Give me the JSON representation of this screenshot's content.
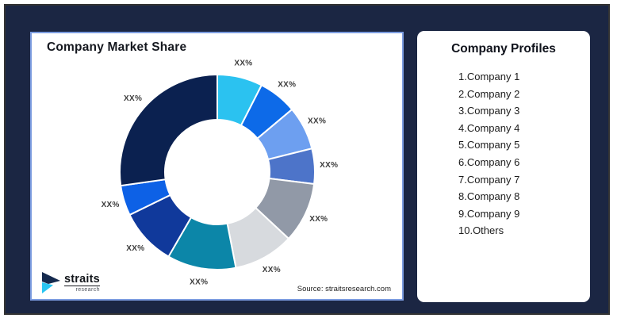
{
  "theme": {
    "background_navy": "#1B2643",
    "outer_border": "#333333",
    "chart_card_border": "#7C9CE0",
    "label_gray": "#3D3D3D",
    "logo_navy": "#152A4E",
    "logo_cyan": "#29C5F2"
  },
  "chart_card": {
    "title": "Company Market Share",
    "source": "Source: straitsresearch.com",
    "logo": {
      "brand": "straits",
      "sub": "research"
    }
  },
  "chart_data": {
    "type": "pie",
    "subtype": "donut",
    "title": "Company Market Share",
    "value_labels_placeholder": "XX%",
    "direction": "clockwise",
    "start_angle_deg": 0,
    "inner_radius_ratio": 0.54,
    "legend_position": "none",
    "segments": [
      {
        "label": "XX%",
        "degrees": 27,
        "approx_percent": 7.5,
        "color": "#2BC2F0"
      },
      {
        "label": "XX%",
        "degrees": 23,
        "approx_percent": 6.4,
        "color": "#0D6AE8"
      },
      {
        "label": "XX%",
        "degrees": 26,
        "approx_percent": 7.2,
        "color": "#6D9FF0"
      },
      {
        "label": "XX%",
        "degrees": 21,
        "approx_percent": 5.8,
        "color": "#4D74C9"
      },
      {
        "label": "XX%",
        "degrees": 36,
        "approx_percent": 10.0,
        "color": "#9199A7"
      },
      {
        "label": "XX%",
        "degrees": 36,
        "approx_percent": 10.0,
        "color": "#D7DADE"
      },
      {
        "label": "XX%",
        "degrees": 41,
        "approx_percent": 11.4,
        "color": "#0C86A8"
      },
      {
        "label": "XX%",
        "degrees": 34,
        "approx_percent": 9.4,
        "color": "#10399B"
      },
      {
        "label": "XX%",
        "degrees": 18,
        "approx_percent": 5.0,
        "color": "#0D61E6"
      },
      {
        "label": "XX%",
        "degrees": 98,
        "approx_percent": 27.3,
        "color": "#0B2150"
      }
    ]
  },
  "profiles_card": {
    "title": "Company Profiles",
    "items": [
      "1.Company 1",
      "2.Company 2",
      "3.Company 3",
      "4.Company 4",
      "5.Company 5",
      "6.Company 6",
      "7.Company 7",
      "8.Company 8",
      "9.Company 9",
      "10.Others"
    ]
  }
}
